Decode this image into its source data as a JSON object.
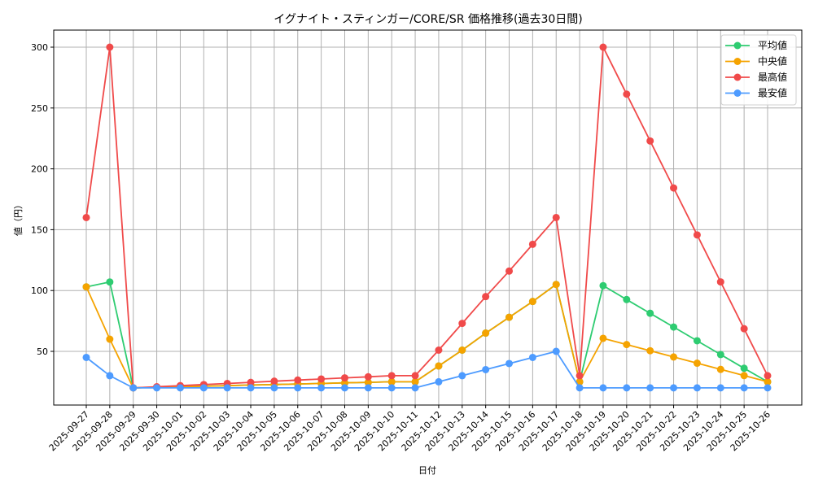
{
  "chart_data": {
    "type": "line",
    "title": "イグナイト・スティンガー/CORE/SR 価格推移(過去30日間)",
    "xlabel": "日付",
    "ylabel": "値（円）",
    "ylim": [
      10,
      313
    ],
    "yticks": [
      50,
      100,
      150,
      200,
      250,
      300
    ],
    "grid": true,
    "legend_position": "upper right",
    "categories": [
      "2025-09-27",
      "2025-09-28",
      "2025-09-29",
      "2025-09-30",
      "2025-10-01",
      "2025-10-02",
      "2025-10-03",
      "2025-10-04",
      "2025-10-05",
      "2025-10-06",
      "2025-10-07",
      "2025-10-08",
      "2025-10-09",
      "2025-10-10",
      "2025-10-11",
      "2025-10-12",
      "2025-10-13",
      "2025-10-14",
      "2025-10-15",
      "2025-10-16",
      "2025-10-17",
      "2025-10-18",
      "2025-10-19",
      "2025-10-20",
      "2025-10-21",
      "2025-10-22",
      "2025-10-23",
      "2025-10-24",
      "2025-10-25",
      "2025-10-26"
    ],
    "series": [
      {
        "name": "平均値",
        "color": "#2ecc71",
        "values": [
          103,
          107,
          20,
          20.5,
          20.9,
          21.4,
          21.8,
          22.3,
          22.7,
          23.2,
          23.6,
          24.1,
          24.5,
          25,
          25,
          38,
          51,
          65,
          78,
          91,
          105,
          25,
          104,
          92.6,
          81.3,
          70,
          58.7,
          47.4,
          36.1,
          25
        ]
      },
      {
        "name": "中央値",
        "color": "#f5a300",
        "values": [
          103,
          60,
          20,
          20.5,
          20.9,
          21.4,
          21.8,
          22.3,
          22.7,
          23.2,
          23.6,
          24.1,
          24.5,
          25,
          25,
          38,
          51,
          65,
          78,
          91,
          105,
          25,
          60.7,
          55.6,
          50.5,
          45.4,
          40.3,
          35.2,
          30.1,
          25
        ]
      },
      {
        "name": "最高値",
        "color": "#f04a4a",
        "values": [
          160,
          300,
          20,
          20.9,
          21.8,
          22.7,
          23.6,
          24.5,
          25.5,
          26.4,
          27.3,
          28.2,
          29.1,
          30,
          30,
          51,
          73,
          95,
          116,
          138,
          160,
          30,
          300,
          261.4,
          222.9,
          184.3,
          145.7,
          107.1,
          68.6,
          30
        ]
      },
      {
        "name": "最安値",
        "color": "#4d9bff",
        "values": [
          45,
          30,
          20,
          20,
          20,
          20,
          20,
          20,
          20,
          20,
          20,
          20,
          20,
          20,
          20,
          25,
          30,
          35,
          40,
          45,
          50,
          20,
          20,
          20,
          20,
          20,
          20,
          20,
          20,
          20
        ]
      }
    ]
  }
}
